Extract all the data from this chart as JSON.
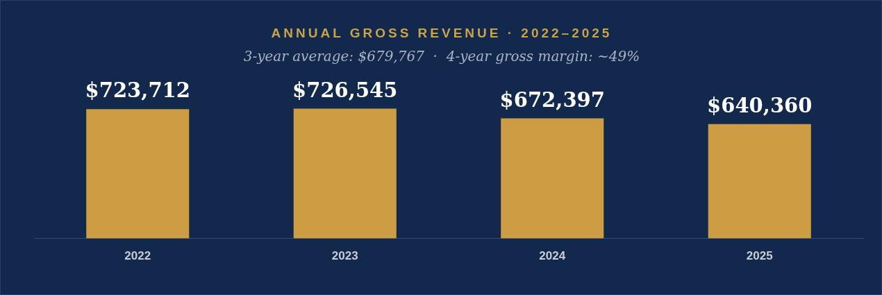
{
  "chart_data": {
    "type": "bar",
    "title": "ANNUAL GROSS REVENUE · 2022–2025",
    "subtitle": "3-year average: $679,767  ·  4-year gross margin: ~49%",
    "categories": [
      "2022",
      "2023",
      "2024",
      "2025"
    ],
    "values": [
      723712,
      726545,
      672397,
      640360
    ],
    "value_labels": [
      "$723,712",
      "$726,545",
      "$672,397",
      "$640,360"
    ],
    "color": "#cc9d42",
    "tick_labels": "x",
    "legend": false
  }
}
